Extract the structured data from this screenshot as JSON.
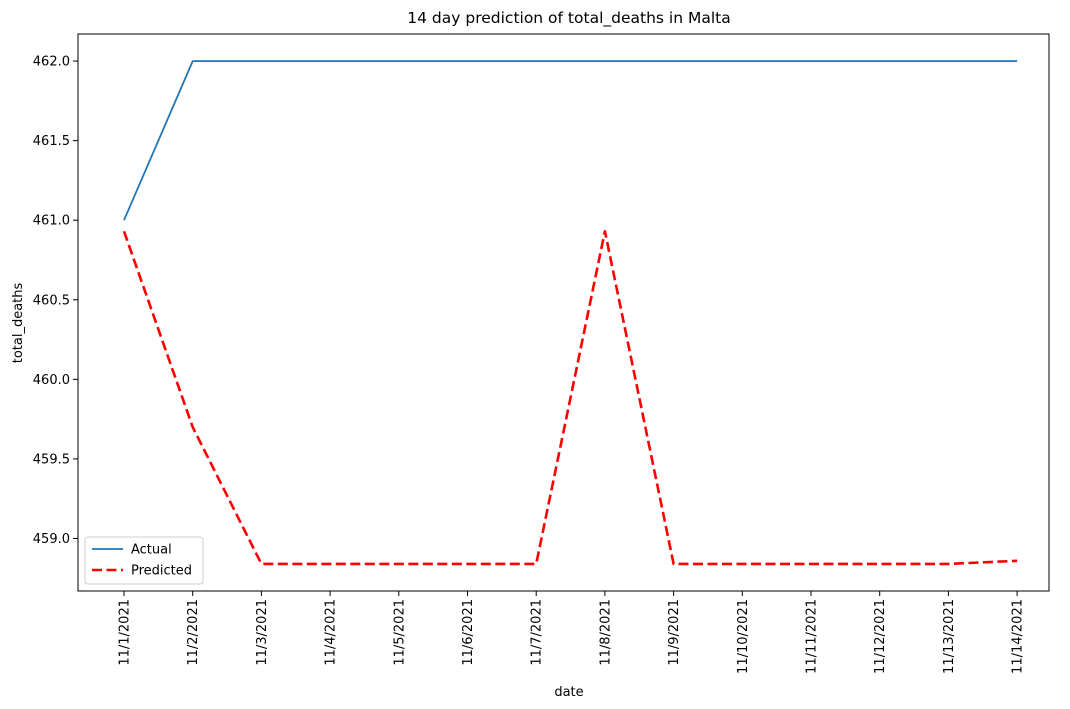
{
  "chart_data": {
    "type": "line",
    "title": "14 day prediction of total_deaths in Malta",
    "xlabel": "date",
    "ylabel": "total_deaths",
    "categories": [
      "11/1/2021",
      "11/2/2021",
      "11/3/2021",
      "11/4/2021",
      "11/5/2021",
      "11/6/2021",
      "11/7/2021",
      "11/8/2021",
      "11/9/2021",
      "11/10/2021",
      "11/11/2021",
      "11/12/2021",
      "11/13/2021",
      "11/14/2021"
    ],
    "ylim": [
      458.67,
      462.17
    ],
    "yticks": [
      459.0,
      459.5,
      460.0,
      460.5,
      461.0,
      461.5,
      462.0
    ],
    "ytick_labels": [
      "459.0",
      "459.5",
      "460.0",
      "460.5",
      "461.0",
      "461.5",
      "462.0"
    ],
    "grid": false,
    "legend_position": "lower-left",
    "series": [
      {
        "name": "Actual",
        "color": "#1f77b4",
        "style": "solid",
        "values": [
          461.0,
          462.0,
          462.0,
          462.0,
          462.0,
          462.0,
          462.0,
          462.0,
          462.0,
          462.0,
          462.0,
          462.0,
          462.0,
          462.0
        ]
      },
      {
        "name": "Predicted",
        "color": "#ff0000",
        "style": "dashed",
        "values": [
          460.93,
          459.7,
          458.84,
          458.84,
          458.84,
          458.84,
          458.84,
          460.93,
          458.84,
          458.84,
          458.84,
          458.84,
          458.84,
          458.86
        ]
      }
    ]
  }
}
